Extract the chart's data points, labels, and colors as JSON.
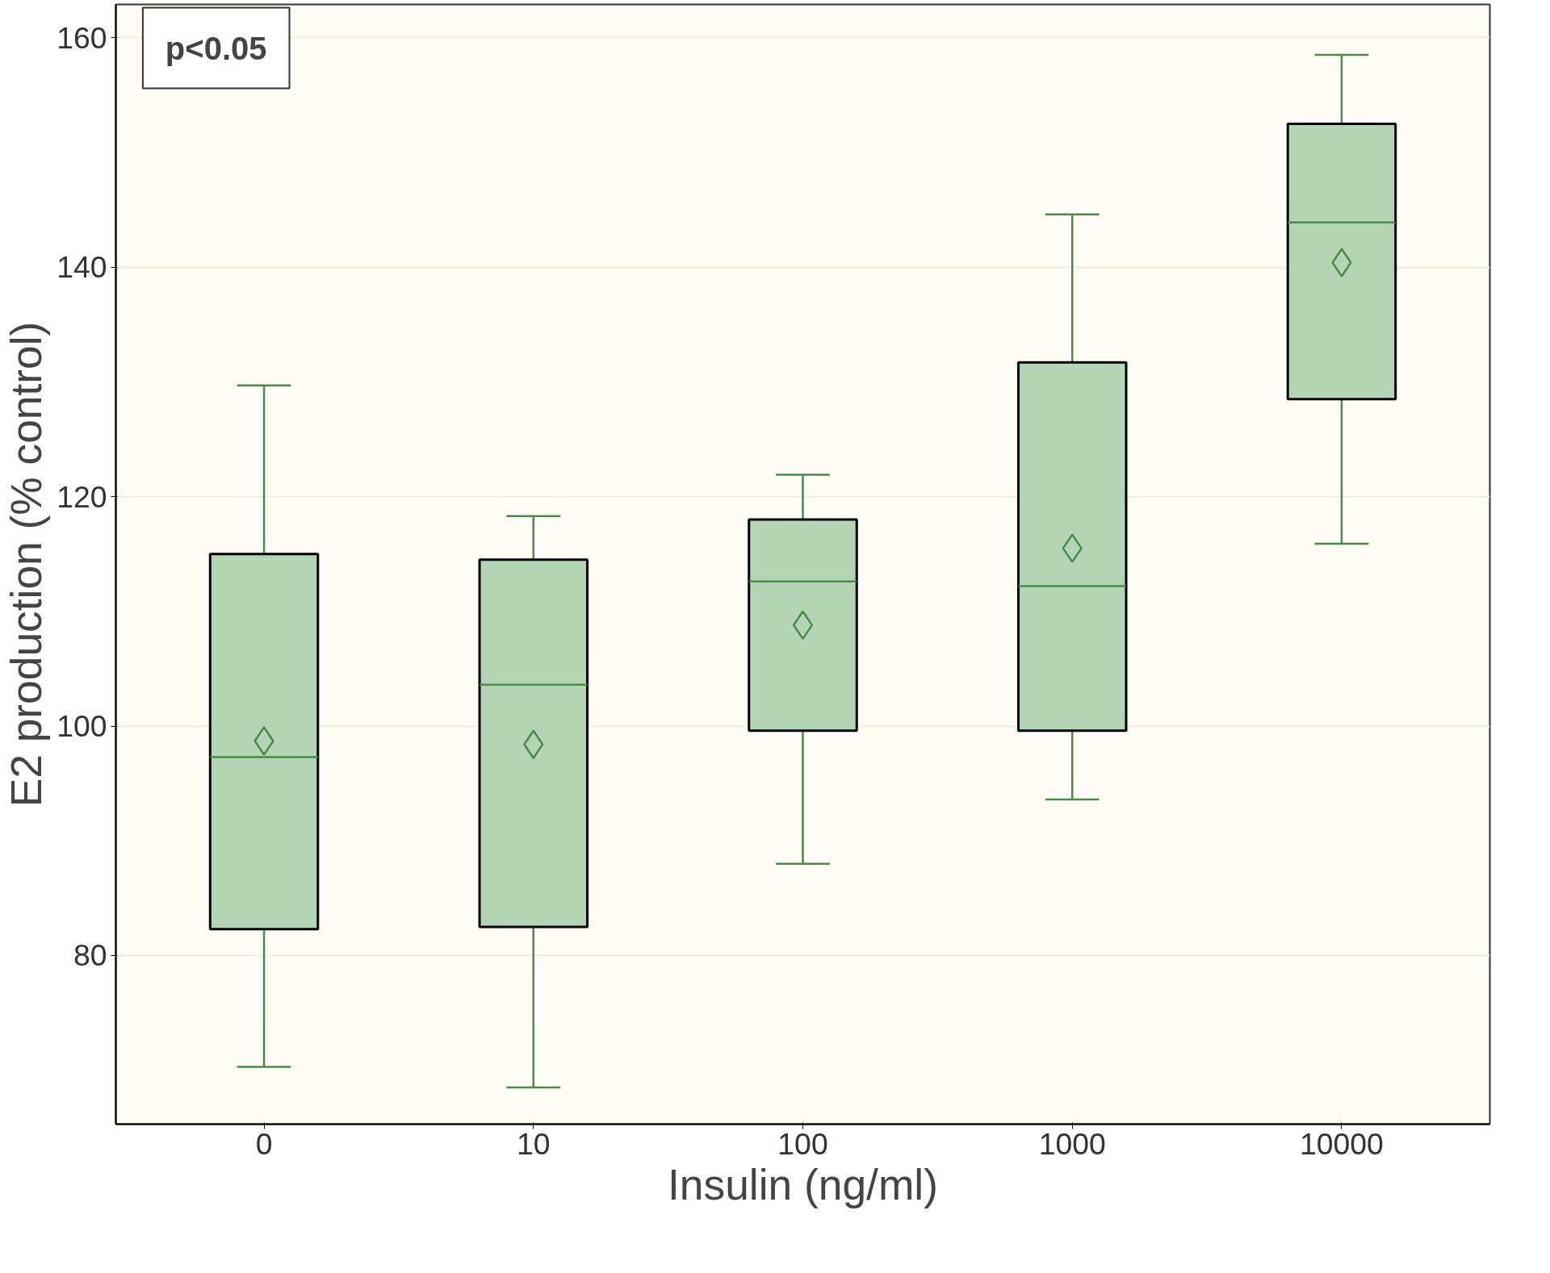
{
  "chart_data": {
    "type": "box",
    "xlabel": "Insulin (ng/ml)",
    "ylabel": "E2 production (% control)",
    "categories": [
      "0",
      "10",
      "100",
      "1000",
      "10000"
    ],
    "boxes": [
      {
        "low": 70.3,
        "q1": 82.3,
        "median": 97.3,
        "q3": 115.0,
        "high": 129.7,
        "mean": 98.7
      },
      {
        "low": 68.5,
        "q1": 82.5,
        "median": 103.6,
        "q3": 114.5,
        "high": 118.3,
        "mean": 98.4
      },
      {
        "low": 88.0,
        "q1": 99.6,
        "median": 112.6,
        "q3": 118.0,
        "high": 121.9,
        "mean": 108.8
      },
      {
        "low": 93.6,
        "q1": 99.6,
        "median": 112.2,
        "q3": 131.7,
        "high": 144.6,
        "mean": 115.5
      },
      {
        "low": 115.9,
        "q1": 128.5,
        "median": 143.9,
        "q3": 152.5,
        "high": 158.5,
        "mean": 140.4
      }
    ],
    "color": "#b3d5b3",
    "ylim": [
      65.3,
      162.9
    ],
    "yticks": [
      80,
      100,
      120,
      140,
      160
    ],
    "grid": "y",
    "annotations": [
      "p<0.05"
    ]
  }
}
